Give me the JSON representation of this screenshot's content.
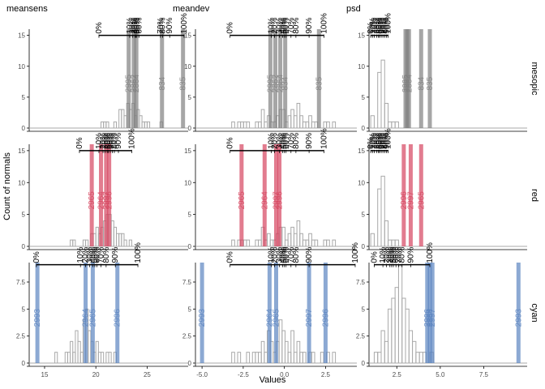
{
  "chart_data": {
    "type": "histogram-facet",
    "xlabel": "Values",
    "ylabel": "Count of normals",
    "columns": [
      "meansens",
      "meandev",
      "psd"
    ],
    "rows": [
      "mesopic",
      "red",
      "cyan"
    ],
    "colors": {
      "mesopic": "#808080",
      "red": "#d6455f",
      "cyan": "#5b84c0",
      "histogram": "#a9a9a9",
      "axis": "#000000",
      "tick_text": "#4d4d4d",
      "percentile_bar": "#000000"
    },
    "percentile_labels": [
      "0%",
      "10%",
      "20%",
      "30%",
      "40%",
      "50%",
      "60%",
      "70%",
      "80%",
      "90%",
      "100%"
    ],
    "facets": [
      {
        "row": "mesopic",
        "col": "meansens",
        "xlim": [
          13.5,
          29
        ],
        "ylim": [
          0,
          16
        ],
        "xticks": [
          15,
          20,
          25
        ],
        "yticks": [
          0,
          5,
          10,
          15
        ],
        "bin_width": 0.25,
        "bins_start": 20.5,
        "counts": [
          1,
          1,
          1,
          0,
          0,
          1,
          0,
          3,
          3,
          2,
          4,
          3,
          4,
          2,
          3,
          2,
          1,
          1,
          1,
          0,
          0,
          0,
          0,
          1
        ],
        "percentile_bar_y": 15,
        "percentiles": [
          20.3,
          23.3,
          23.6,
          23.8,
          23.9,
          24.0,
          24.2,
          26.3,
          26.5,
          27.2,
          28.6
        ],
        "patients": [
          {
            "id": "2995",
            "x": 23.2
          },
          {
            "id": "2862",
            "x": 23.7
          },
          {
            "id": "2864",
            "x": 23.95
          },
          {
            "id": "834",
            "x": 26.45
          },
          {
            "id": "835",
            "x": 28.5
          }
        ]
      },
      {
        "row": "mesopic",
        "col": "meandev",
        "xlim": [
          -5.4,
          4.4
        ],
        "ylim": [
          0,
          16
        ],
        "xticks": [
          -5.0,
          -2.5,
          0.0,
          2.5
        ],
        "yticks": [
          0,
          5,
          10,
          15
        ],
        "bin_width": 0.18,
        "bins_start": -3.2,
        "counts": [
          1,
          0,
          1,
          1,
          1,
          1,
          0,
          0,
          1,
          1,
          3,
          1,
          2,
          1,
          1,
          2,
          3,
          3,
          1,
          2,
          3,
          2,
          4,
          2,
          1,
          1,
          2,
          1,
          1,
          0,
          0,
          1,
          1,
          0,
          1
        ],
        "percentile_bar_y": 15,
        "percentiles": [
          -3.3,
          -0.8,
          -0.6,
          -0.3,
          -0.1,
          0.0,
          0.1,
          0.4,
          0.7,
          1.5,
          2.4
        ],
        "patients": [
          {
            "id": "2995",
            "x": -0.85
          },
          {
            "id": "2862",
            "x": -0.55
          },
          {
            "id": "2864",
            "x": -0.25
          },
          {
            "id": "834",
            "x": 0.05
          },
          {
            "id": "835",
            "x": 2.1
          }
        ]
      },
      {
        "row": "mesopic",
        "col": "psd",
        "xlim": [
          0.9,
          10.0
        ],
        "ylim": [
          0,
          16
        ],
        "xticks": [
          2.5,
          5.0,
          7.5
        ],
        "yticks": [
          0,
          5,
          10,
          15
        ],
        "bin_width": 0.2,
        "bins_start": 1.0,
        "counts": [
          2,
          0,
          9,
          11,
          4,
          1,
          1,
          1
        ],
        "percentile_bar_y": 15,
        "percentiles": [
          1.0,
          1.1,
          1.2,
          1.35,
          1.45,
          1.5,
          1.6,
          1.7,
          1.8,
          1.9,
          2.0
        ],
        "patients": [
          {
            "id": "2995",
            "x": 3.0
          },
          {
            "id": "2862",
            "x": 3.1
          },
          {
            "id": "2864",
            "x": 3.2
          },
          {
            "id": "834",
            "x": 3.9
          },
          {
            "id": "835",
            "x": 4.4
          }
        ]
      },
      {
        "row": "red",
        "col": "meansens",
        "xlim": [
          13.5,
          29
        ],
        "ylim": [
          0,
          16
        ],
        "xticks": [
          15,
          20,
          25
        ],
        "yticks": [
          0,
          5,
          10,
          15
        ],
        "bin_width": 0.25,
        "bins_start": 17.5,
        "counts": [
          1,
          1,
          0,
          0,
          0,
          1,
          1,
          0,
          2,
          2,
          3,
          2,
          3,
          4,
          5,
          5,
          4,
          3,
          2,
          2,
          2,
          1,
          0,
          1
        ],
        "percentile_bar_y": 15,
        "percentiles": [
          18.4,
          20.3,
          20.7,
          20.9,
          21.1,
          21.2,
          21.4,
          21.6,
          21.8,
          22.2,
          23.5
        ],
        "patients": [
          {
            "id": "2965",
            "x": 19.6
          },
          {
            "id": "2964",
            "x": 20.5
          },
          {
            "id": "2997",
            "x": 21.0
          },
          {
            "id": "2996",
            "x": 21.3
          }
        ]
      },
      {
        "row": "red",
        "col": "meandev",
        "xlim": [
          -5.4,
          4.4
        ],
        "ylim": [
          0,
          16
        ],
        "xticks": [
          -5.0,
          -2.5,
          0.0,
          2.5
        ],
        "yticks": [
          0,
          5,
          10,
          15
        ],
        "bin_width": 0.18,
        "bins_start": -3.2,
        "counts": [
          1,
          0,
          1,
          1,
          1,
          1,
          0,
          0,
          1,
          1,
          3,
          1,
          2,
          1,
          1,
          2,
          3,
          3,
          1,
          2,
          3,
          2,
          4,
          2,
          1,
          1,
          2,
          1,
          1,
          0,
          0,
          1,
          1,
          0,
          1
        ],
        "percentile_bar_y": 15,
        "percentiles": [
          -3.3,
          -0.8,
          -0.6,
          -0.3,
          -0.1,
          0.0,
          0.1,
          0.4,
          0.7,
          1.5,
          2.4
        ],
        "patients": [
          {
            "id": "2965",
            "x": -2.6
          },
          {
            "id": "2964",
            "x": -1.2
          },
          {
            "id": "2997",
            "x": -0.5
          },
          {
            "id": "2996",
            "x": -0.3
          }
        ]
      },
      {
        "row": "red",
        "col": "psd",
        "xlim": [
          0.9,
          10.0
        ],
        "ylim": [
          0,
          16
        ],
        "xticks": [
          2.5,
          5.0,
          7.5
        ],
        "yticks": [
          0,
          5,
          10,
          15
        ],
        "bin_width": 0.2,
        "bins_start": 1.0,
        "counts": [
          2,
          0,
          9,
          11,
          4,
          1,
          1,
          1
        ],
        "percentile_bar_y": 15,
        "percentiles": [
          1.0,
          1.1,
          1.2,
          1.35,
          1.45,
          1.5,
          1.6,
          1.7,
          1.8,
          1.9,
          2.0
        ],
        "patients": [
          {
            "id": "2996",
            "x": 2.9
          },
          {
            "id": "2997",
            "x": 3.3
          },
          {
            "id": "2965",
            "x": 3.9
          }
        ]
      },
      {
        "row": "cyan",
        "col": "meansens",
        "xlim": [
          13.5,
          29
        ],
        "ylim": [
          0,
          9.3
        ],
        "xticks": [
          15,
          20,
          25
        ],
        "yticks": [
          0,
          2.5,
          5,
          7.5
        ],
        "bin_width": 0.25,
        "bins_start": 16.0,
        "counts": [
          1,
          0,
          0,
          0,
          1,
          1,
          2,
          1,
          3,
          2,
          1,
          4,
          5,
          3,
          2,
          1,
          2,
          1,
          1,
          0,
          1,
          1,
          0,
          1
        ],
        "percentile_bar_y": 9.1,
        "percentiles": [
          14.2,
          18.5,
          19.0,
          19.4,
          19.7,
          19.9,
          20.1,
          20.5,
          21.0,
          21.9,
          24.1
        ],
        "patients": [
          {
            "id": "2993",
            "x": 14.3
          },
          {
            "id": "2964",
            "x": 19.0
          },
          {
            "id": "2965",
            "x": 19.7
          },
          {
            "id": "2996",
            "x": 22.1
          }
        ]
      },
      {
        "row": "cyan",
        "col": "meandev",
        "xlim": [
          -5.4,
          4.4
        ],
        "ylim": [
          0,
          9.3
        ],
        "xticks": [
          -5.0,
          -2.5,
          0.0,
          2.5
        ],
        "yticks": [
          0,
          2.5,
          5,
          7.5
        ],
        "bin_width": 0.18,
        "bins_start": -3.2,
        "counts": [
          1,
          0,
          1,
          0,
          0,
          1,
          0,
          1,
          1,
          1,
          2,
          1,
          3,
          2,
          1,
          2,
          4,
          3,
          2,
          1,
          3,
          1,
          2,
          1,
          1,
          0,
          1,
          1,
          0,
          0,
          1,
          0,
          1,
          0,
          1
        ],
        "percentile_bar_y": 9.1,
        "percentiles": [
          -3.3,
          -0.8,
          -0.6,
          -0.3,
          -0.1,
          0.0,
          0.1,
          0.4,
          0.7,
          1.5,
          4.3
        ],
        "patients": [
          {
            "id": "2993",
            "x": -5.0
          },
          {
            "id": "2964",
            "x": -0.9
          },
          {
            "id": "2965",
            "x": -0.5
          },
          {
            "id": "2997",
            "x": 1.5
          },
          {
            "id": "2996",
            "x": 2.5
          }
        ]
      },
      {
        "row": "cyan",
        "col": "psd",
        "xlim": [
          0.9,
          10.0
        ],
        "ylim": [
          0,
          9.3
        ],
        "xticks": [
          2.5,
          5.0,
          7.5
        ],
        "yticks": [
          0,
          2.5,
          5,
          7.5
        ],
        "bin_width": 0.2,
        "bins_start": 1.2,
        "counts": [
          1,
          1,
          3,
          2,
          5,
          6,
          7,
          9,
          6,
          5,
          3,
          2,
          1,
          1,
          1,
          0,
          1
        ],
        "percentile_bar_y": 9.1,
        "percentiles": [
          1.2,
          1.7,
          1.9,
          2.1,
          2.2,
          2.3,
          2.45,
          2.6,
          2.8,
          3.3,
          4.4
        ],
        "patients": [
          {
            "id": "2996",
            "x": 4.25
          },
          {
            "id": "2964",
            "x": 4.4
          },
          {
            "id": "2997",
            "x": 4.55
          },
          {
            "id": "2993",
            "x": 9.5
          }
        ]
      }
    ]
  }
}
